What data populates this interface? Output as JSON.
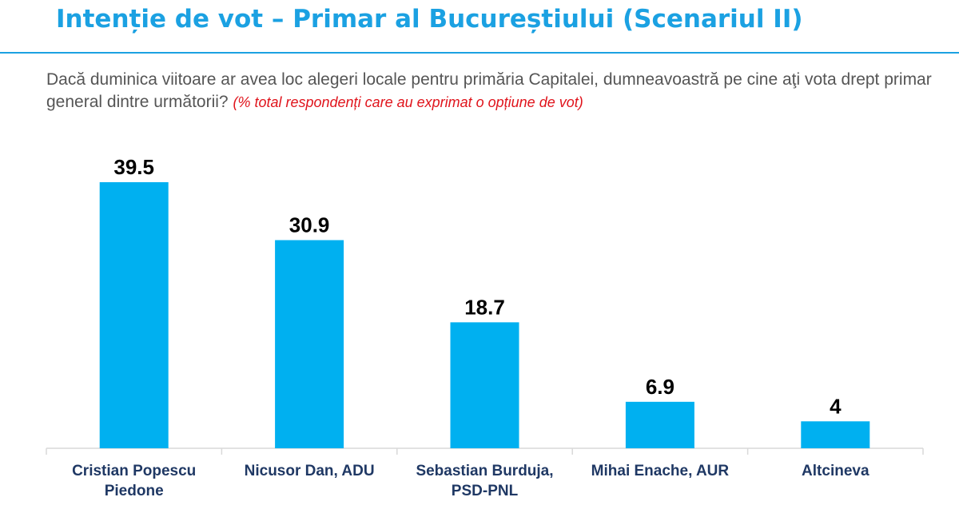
{
  "header": {
    "title": "Intenție de vot – Primar al Bucureștiului (Scenariul II)"
  },
  "question": {
    "text": "Dacă duminica viitoare ar avea loc alegeri locale pentru primăria Capitalei,  dumneavoastră pe cine aţi vota drept primar general dintre următorii?",
    "note": "(% total respondenți care au exprimat o opțiune de vot)"
  },
  "colors": {
    "accent": "#1ba1e2",
    "bar": "#00b0f0",
    "note": "#e0141c",
    "category_label": "#1f3864"
  },
  "chart_data": {
    "type": "bar",
    "categories": [
      [
        "Cristian Popescu",
        "Piedone"
      ],
      [
        "Nicusor Dan, ADU"
      ],
      [
        "Sebastian Burduja,",
        "PSD-PNL"
      ],
      [
        "Mihai Enache, AUR"
      ],
      [
        "Altcineva"
      ]
    ],
    "values": [
      39.5,
      30.9,
      18.7,
      6.9,
      4
    ],
    "value_labels": [
      "39.5",
      "30.9",
      "18.7",
      "6.9",
      "4"
    ],
    "ylim": [
      0,
      45
    ],
    "grid": false,
    "legend": "none"
  }
}
